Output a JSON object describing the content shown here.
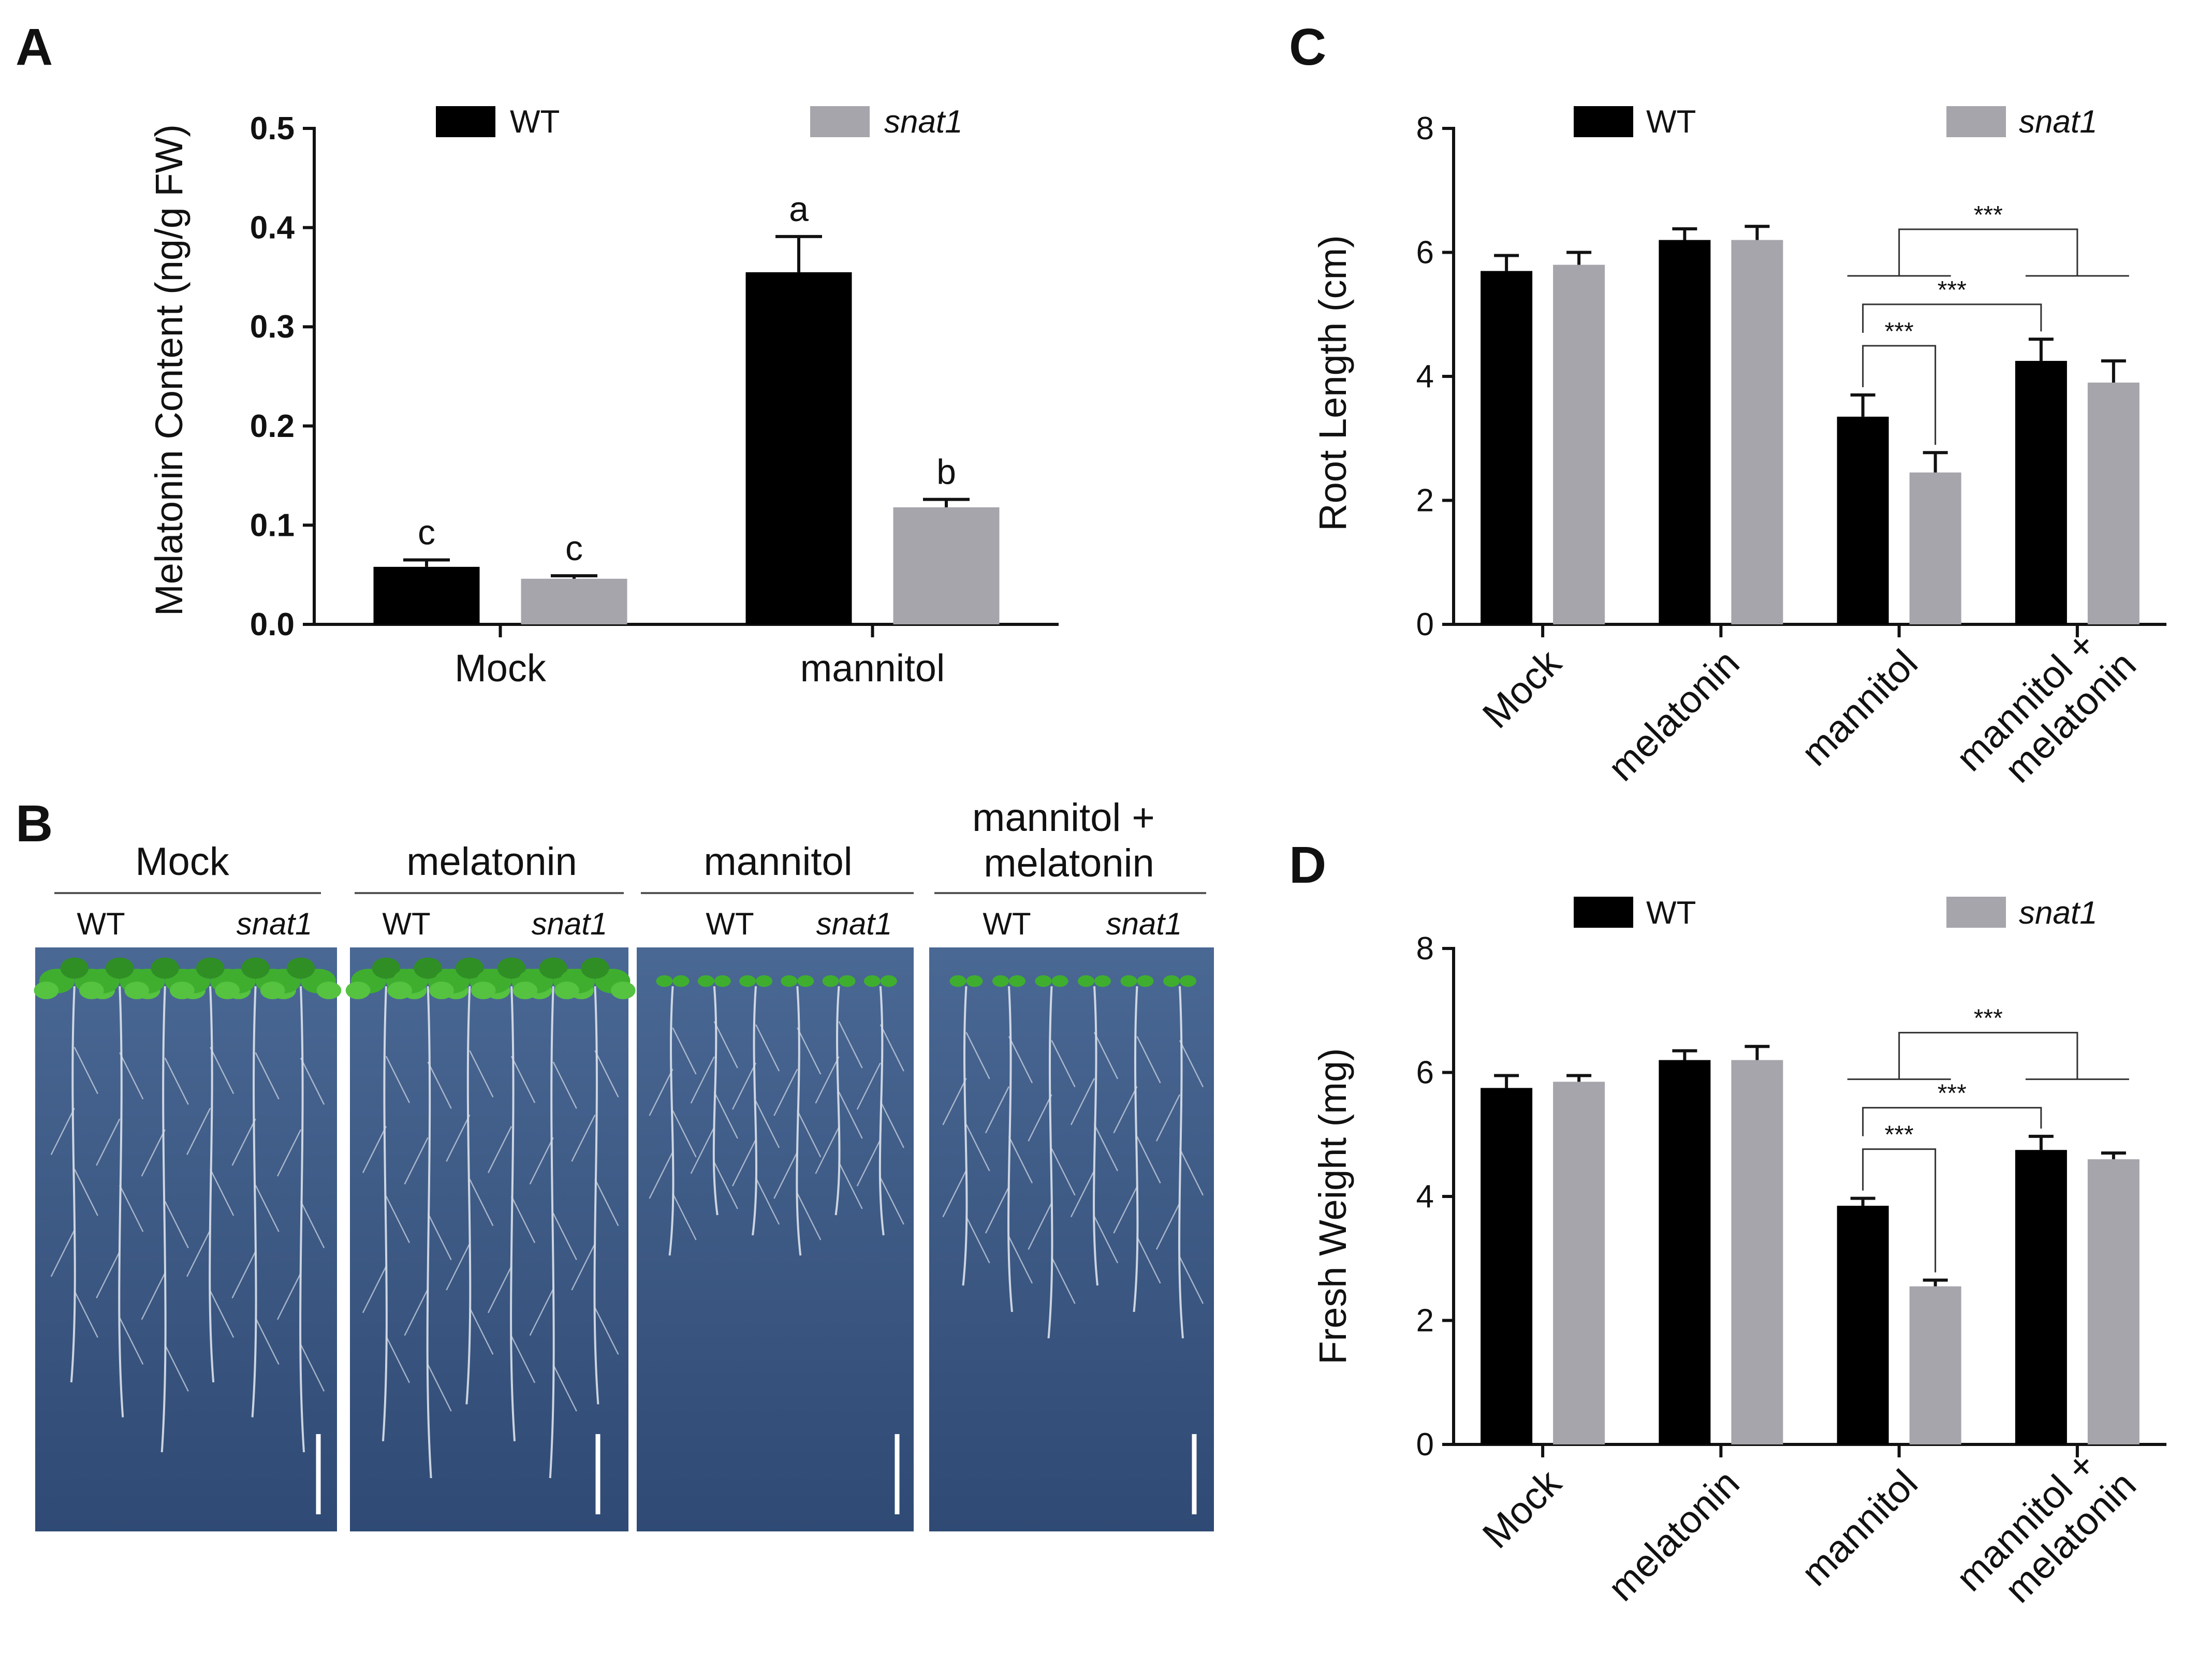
{
  "chart_data": [
    {
      "id": "A",
      "type": "bar",
      "panel_label": "A",
      "categories": [
        "Mock",
        "mannitol"
      ],
      "series": [
        {
          "name": "WT",
          "color": "#000000",
          "values": [
            0.058,
            0.355
          ],
          "errors": [
            0.007,
            0.036
          ]
        },
        {
          "name": "snat1",
          "color": "#a6a5ab",
          "values": [
            0.046,
            0.118
          ],
          "errors": [
            0.003,
            0.008
          ]
        }
      ],
      "bar_letters": [
        [
          "c",
          "a"
        ],
        [
          "c",
          "b"
        ]
      ],
      "ylabel": "Melatonin Content (ng/g FW)",
      "xlabel": "",
      "ylim": [
        0,
        0.5
      ],
      "yticks": [
        "0.0",
        "0.1",
        "0.2",
        "0.3",
        "0.4",
        "0.5"
      ],
      "legend": [
        "WT",
        "snat1"
      ]
    },
    {
      "id": "C",
      "type": "bar",
      "panel_label": "C",
      "categories": [
        "Mock",
        "melatonin",
        "mannitol",
        "mannitol +\nmelatonin"
      ],
      "series": [
        {
          "name": "WT",
          "color": "#000000",
          "values": [
            5.7,
            6.2,
            3.35,
            4.25
          ],
          "errors": [
            0.25,
            0.18,
            0.35,
            0.35
          ]
        },
        {
          "name": "snat1",
          "color": "#a6a5ab",
          "values": [
            5.8,
            6.2,
            2.45,
            3.9
          ],
          "errors": [
            0.2,
            0.22,
            0.32,
            0.35
          ]
        }
      ],
      "ylabel": "Root Length (cm)",
      "xlabel": "",
      "ylim": [
        0,
        8
      ],
      "yticks": [
        "0",
        "2",
        "4",
        "6",
        "8"
      ],
      "legend": [
        "WT",
        "snat1"
      ],
      "significance": [
        "***",
        "***",
        "***"
      ]
    },
    {
      "id": "D",
      "type": "bar",
      "panel_label": "D",
      "categories": [
        "Mock",
        "melatonin",
        "mannitol",
        "mannitol +\nmelatonin"
      ],
      "series": [
        {
          "name": "WT",
          "color": "#000000",
          "values": [
            5.75,
            6.2,
            3.85,
            4.75
          ],
          "errors": [
            0.2,
            0.15,
            0.12,
            0.22
          ]
        },
        {
          "name": "snat1",
          "color": "#a6a5ab",
          "values": [
            5.85,
            6.2,
            2.55,
            4.6
          ],
          "errors": [
            0.1,
            0.22,
            0.1,
            0.1
          ]
        }
      ],
      "ylabel": "Fresh Weight (mg)",
      "xlabel": "",
      "ylim": [
        0,
        8
      ],
      "yticks": [
        "0",
        "2",
        "4",
        "6",
        "8"
      ],
      "legend": [
        "WT",
        "snat1"
      ],
      "significance": [
        "***",
        "***",
        "***"
      ]
    }
  ],
  "panel_b": {
    "panel_label": "B",
    "groups": [
      {
        "title": "Mock",
        "wt": "WT",
        "mutant": "snat1"
      },
      {
        "title": "melatonin",
        "wt": "WT",
        "mutant": "snat1"
      },
      {
        "title": "mannitol",
        "wt": "WT",
        "mutant": "snat1"
      },
      {
        "title": "mannitol +\nmelatonin",
        "wt": "WT",
        "mutant": "snat1"
      }
    ],
    "plate_color": "#3e5a86",
    "seedling_color": "#3fae2f"
  }
}
